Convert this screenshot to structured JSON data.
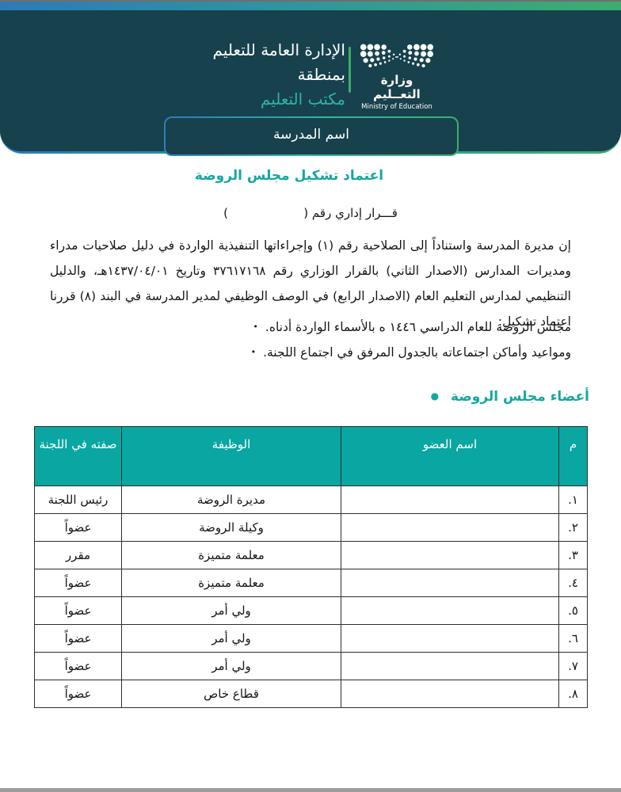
{
  "page": {
    "header": {
      "dept_line1": "الإدارة العامة للتعليم",
      "dept_line2": "بمنطقة",
      "office": "مكتب التعليم",
      "logo": {
        "emblem_icon": "ministry-of-education-dots-emblem",
        "ministry_ar": "وزارة التعــليم",
        "ministry_en": "Ministry of Education"
      },
      "school_name_box": "اسم المدرسة"
    },
    "doc": {
      "title": "اعتماد تشكيل مجلس الروضة",
      "decision_line": "قـــرار إداري رقم (                    )",
      "paragraph": "إن مديرة المدرسة واستناداً إلى الصلاحية رقم (١) وإجراءاتها التنفيذية الواردة في دليل صلاحيات مدراء ومديرات المدارس (الاصدار الثاني) بالقرار الوزاري رقم ٣٧٦١٧١٦٨ وتاريخ ١٤٣٧/٠٤/٠١هـ، والدليل التنظيمي لمدارس التعليم العام (الاصدار الرابع) في الوصف الوظيفي لمدير المدرسة في البند (٨) قررنا اعتماد تشكيل:",
      "bullets": [
        "مجلس الروضة للعام الدراسي ١٤٤٦ ه بالأسماء الواردة أدناه.",
        "ومواعيد وأماكن اجتماعاته بالجدول المرفق في اجتماع اللجنة."
      ],
      "bullet_char": "•",
      "section_title": "أعضاء مجلس الروضة",
      "section_bullet_char": "●"
    },
    "members_table": {
      "headers": {
        "num": "م",
        "name": "اسم العضو",
        "job": "الوظيفة",
        "role": "صفته في اللجنة"
      },
      "rows": [
        {
          "num": "١.",
          "name": "",
          "job": "مديرة الروضة",
          "role": "رئيس اللجنة"
        },
        {
          "num": "٢.",
          "name": "",
          "job": "وكيلة الروضة",
          "role": "عضواً"
        },
        {
          "num": "٣.",
          "name": "",
          "job": "معلمة متميزة",
          "role": "مقرر"
        },
        {
          "num": "٤.",
          "name": "",
          "job": "معلمة متميزة",
          "role": "عضواً"
        },
        {
          "num": "٥.",
          "name": "",
          "job": "ولي أمر",
          "role": "عضواً"
        },
        {
          "num": "٦.",
          "name": "",
          "job": "ولي أمر",
          "role": "عضواً"
        },
        {
          "num": "٧.",
          "name": "",
          "job": "ولي أمر",
          "role": "عضواً"
        },
        {
          "num": "٨.",
          "name": "",
          "job": "قطاع خاص",
          "role": "عضواً"
        }
      ]
    },
    "colors": {
      "header_dark": "#17414d",
      "accent_teal": "#14a7a1",
      "table_header_teal": "#0aa6a1",
      "gradient_blue": "#2d7ab8",
      "gradient_green": "#3dad6d",
      "bottom_bar_gray": "#9d9d9d"
    }
  }
}
